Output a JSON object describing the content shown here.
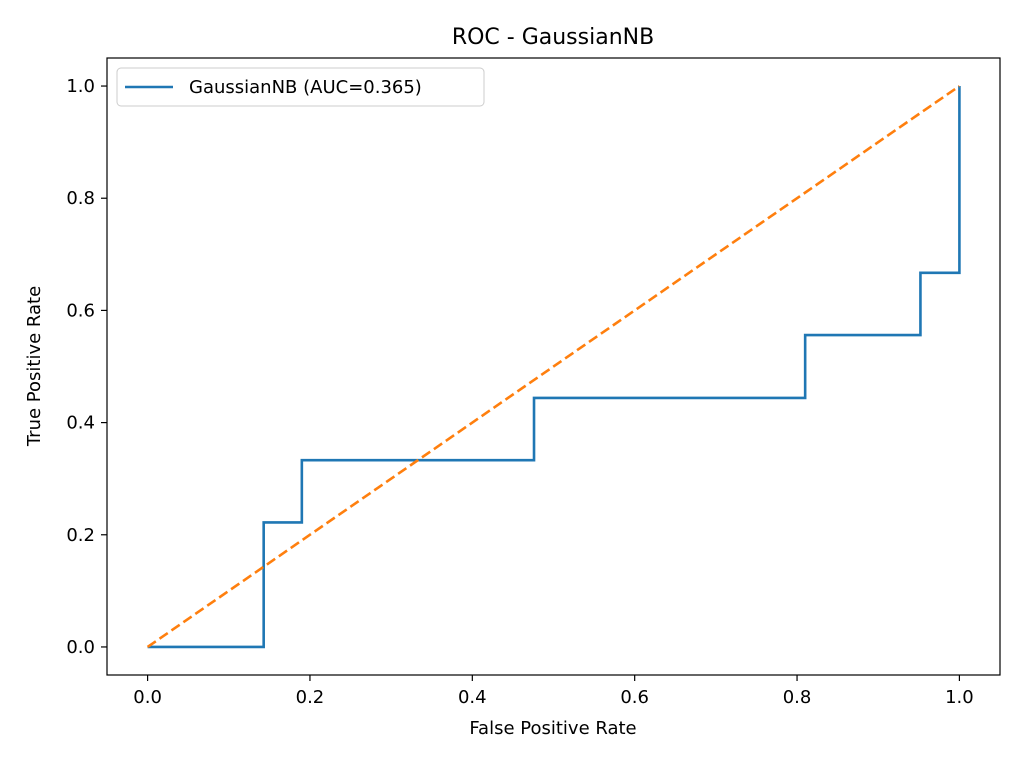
{
  "chart_data": {
    "type": "line",
    "title": "ROC - GaussianNB",
    "xlabel": "False Positive Rate",
    "ylabel": "True Positive Rate",
    "xlim": [
      -0.05,
      1.05
    ],
    "ylim": [
      -0.05,
      1.05
    ],
    "xticks": [
      0.0,
      0.2,
      0.4,
      0.6,
      0.8,
      1.0
    ],
    "yticks": [
      0.0,
      0.2,
      0.4,
      0.6,
      0.8,
      1.0
    ],
    "xtick_labels": [
      "0.0",
      "0.2",
      "0.4",
      "0.6",
      "0.8",
      "1.0"
    ],
    "ytick_labels": [
      "0.0",
      "0.2",
      "0.4",
      "0.6",
      "0.8",
      "1.0"
    ],
    "grid": false,
    "legend_position": "top-left",
    "series": [
      {
        "name": "GaussianNB (AUC=0.365)",
        "color": "#1f77b4",
        "style": "solid",
        "x": [
          0.0,
          0.143,
          0.143,
          0.19,
          0.19,
          0.476,
          0.476,
          0.81,
          0.81,
          0.952,
          0.952,
          1.0,
          1.0
        ],
        "y": [
          0.0,
          0.0,
          0.222,
          0.222,
          0.333,
          0.333,
          0.444,
          0.444,
          0.556,
          0.556,
          0.667,
          0.667,
          1.0
        ]
      },
      {
        "color": "#ff7f0e",
        "style": "dashed",
        "x": [
          0.0,
          1.0
        ],
        "y": [
          0.0,
          1.0
        ]
      }
    ]
  }
}
